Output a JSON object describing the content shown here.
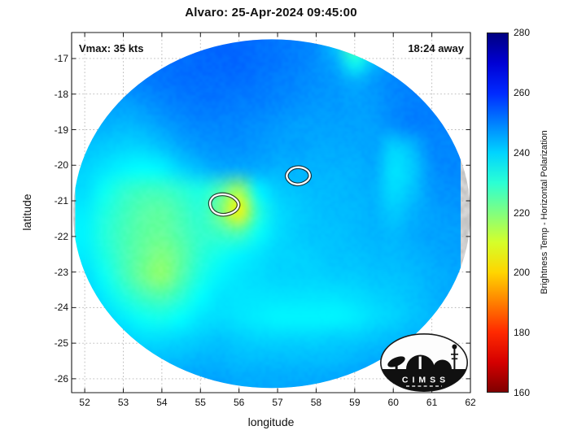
{
  "annotations": {
    "vmax": "Vmax: 35 kts",
    "eta": "18:24 away"
  },
  "logo": {
    "name": "CIMSS",
    "letters": "CIMSS"
  },
  "chart_data": {
    "type": "heatmap",
    "title": "Alvaro: 25-Apr-2024 09:45:00",
    "xlabel": "longitude",
    "ylabel": "latitude",
    "xlim": [
      51.66,
      62.0
    ],
    "ylim": [
      -26.39,
      -16.27
    ],
    "x_ticks": [
      52,
      53,
      54,
      55,
      56,
      57,
      58,
      59,
      60,
      61,
      62
    ],
    "y_ticks": [
      -17,
      -18,
      -19,
      -20,
      -21,
      -22,
      -23,
      -24,
      -25,
      -26
    ],
    "grid": "dotted",
    "annotations": [
      {
        "text": "Vmax: 35 kts",
        "corner": "top-left"
      },
      {
        "text": "18:24 away",
        "corner": "top-right"
      }
    ],
    "colorbar": {
      "label": "Brightness Temp - Horizontal Polarization",
      "min": 160,
      "max": 280,
      "ticks": [
        160,
        180,
        200,
        220,
        240,
        260,
        280
      ],
      "colormap": "jet_reversed"
    },
    "swath": {
      "center_lon": 56.85,
      "center_lat": -21.36,
      "radius_lon": 5.15,
      "radius_lat": 4.9
    },
    "heatmap": {
      "units": "K",
      "lon": [
        52.0,
        52.5,
        53.0,
        53.5,
        54.0,
        54.5,
        55.0,
        55.5,
        56.0,
        56.5,
        57.0,
        57.5,
        58.0,
        58.5,
        59.0,
        59.5,
        60.0,
        60.5,
        61.0,
        61.5
      ],
      "lat": [
        -16.5,
        -17.1,
        -17.7,
        -18.3,
        -18.9,
        -19.5,
        -20.1,
        -20.7,
        -21.3,
        -21.9,
        -22.5,
        -23.1,
        -23.7,
        -24.3,
        -24.9,
        -25.5,
        -26.1
      ],
      "values": [
        [
          251,
          251,
          251,
          251,
          251,
          252,
          252,
          253,
          253,
          252,
          251,
          250,
          249,
          241,
          222,
          237,
          249,
          251,
          251,
          251
        ],
        [
          250,
          250,
          250,
          251,
          252,
          252,
          253,
          253,
          253,
          252,
          251,
          250,
          248,
          245,
          233,
          243,
          249,
          250,
          251,
          250
        ],
        [
          249,
          249,
          249,
          250,
          251,
          252,
          252,
          252,
          252,
          251,
          250,
          249,
          248,
          247,
          245,
          247,
          249,
          250,
          250,
          249
        ],
        [
          247,
          247,
          246,
          247,
          249,
          250,
          251,
          251,
          250,
          250,
          249,
          248,
          247,
          247,
          246,
          247,
          249,
          250,
          250,
          249
        ],
        [
          245,
          244,
          243,
          244,
          246,
          248,
          249,
          249,
          249,
          248,
          247,
          246,
          246,
          246,
          246,
          246,
          248,
          250,
          250,
          249
        ],
        [
          242,
          241,
          240,
          240,
          242,
          245,
          247,
          248,
          248,
          247,
          246,
          246,
          245,
          245,
          245,
          246,
          240,
          243,
          249,
          249
        ],
        [
          240,
          238,
          236,
          235,
          236,
          240,
          243,
          245,
          245,
          245,
          244,
          244,
          244,
          244,
          244,
          245,
          238,
          241,
          248,
          249
        ],
        [
          239,
          234,
          230,
          228,
          228,
          230,
          232,
          226,
          216,
          236,
          241,
          242,
          243,
          243,
          244,
          244,
          239,
          242,
          247,
          248
        ],
        [
          237,
          232,
          228,
          225,
          224,
          227,
          230,
          221,
          204,
          230,
          239,
          241,
          242,
          243,
          243,
          244,
          241,
          244,
          246,
          247
        ],
        [
          236,
          231,
          227,
          224,
          223,
          226,
          229,
          228,
          226,
          234,
          239,
          241,
          242,
          242,
          243,
          244,
          243,
          245,
          246,
          246
        ],
        [
          237,
          232,
          227,
          223,
          220,
          224,
          230,
          233,
          236,
          238,
          240,
          240,
          241,
          242,
          242,
          243,
          243,
          244,
          245,
          246
        ],
        [
          239,
          234,
          228,
          222,
          218,
          225,
          232,
          236,
          238,
          239,
          240,
          240,
          240,
          241,
          241,
          242,
          242,
          243,
          244,
          245
        ],
        [
          241,
          237,
          232,
          228,
          226,
          230,
          235,
          238,
          238,
          238,
          238,
          238,
          238,
          238,
          239,
          240,
          241,
          242,
          244,
          245
        ],
        [
          243,
          240,
          237,
          234,
          233,
          235,
          238,
          239,
          238,
          237,
          236,
          236,
          236,
          236,
          237,
          239,
          240,
          242,
          243,
          244
        ],
        [
          245,
          243,
          241,
          239,
          239,
          240,
          241,
          242,
          241,
          240,
          240,
          240,
          240,
          241,
          241,
          242,
          243,
          244,
          245,
          246
        ],
        [
          247,
          245,
          244,
          243,
          243,
          243,
          244,
          244,
          243,
          243,
          243,
          243,
          243,
          243,
          244,
          245,
          245,
          246,
          246,
          247
        ],
        [
          249,
          248,
          247,
          246,
          246,
          246,
          246,
          246,
          245,
          245,
          245,
          245,
          245,
          246,
          246,
          247,
          247,
          248,
          248,
          249
        ]
      ]
    },
    "contours": [
      {
        "name": "contour-1",
        "color": "#ffffff",
        "points": [
          [
            55.22,
            -21.05
          ],
          [
            55.35,
            -20.85
          ],
          [
            55.6,
            -20.8
          ],
          [
            55.85,
            -20.88
          ],
          [
            56.02,
            -21.08
          ],
          [
            55.92,
            -21.3
          ],
          [
            55.6,
            -21.42
          ],
          [
            55.32,
            -21.32
          ]
        ]
      },
      {
        "name": "contour-2",
        "color": "#ffffff",
        "points": [
          [
            57.2,
            -20.3
          ],
          [
            57.35,
            -20.08
          ],
          [
            57.6,
            -20.04
          ],
          [
            57.82,
            -20.16
          ],
          [
            57.85,
            -20.38
          ],
          [
            57.62,
            -20.55
          ],
          [
            57.35,
            -20.52
          ]
        ]
      }
    ]
  }
}
